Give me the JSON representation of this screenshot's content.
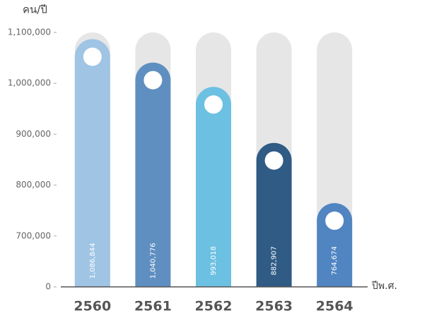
{
  "chart_data": {
    "type": "bar",
    "ylabel": "คน/ปี",
    "xlabel": "ปีพ.ศ.",
    "categories": [
      "2560",
      "2561",
      "2562",
      "2563",
      "2564"
    ],
    "values": [
      1086844,
      1040776,
      993018,
      882907,
      764674
    ],
    "value_labels": [
      "1,086,844",
      "1,040,776",
      "993,018",
      "882,907",
      "764,674"
    ],
    "colors": [
      "#9fc4e4",
      "#5f8fc0",
      "#6cc0e2",
      "#2f5b85",
      "#5085c2"
    ],
    "ylim": [
      0,
      1100000
    ],
    "yticks": [
      0,
      {
        "value": 700000,
        "label": "700,000"
      },
      {
        "value": 800000,
        "label": "800,000"
      },
      {
        "value": 900000,
        "label": "900,000"
      },
      {
        "value": 1000000,
        "label": "1,000,000"
      },
      {
        "value": 1100000,
        "label": "1,100,000"
      }
    ]
  }
}
